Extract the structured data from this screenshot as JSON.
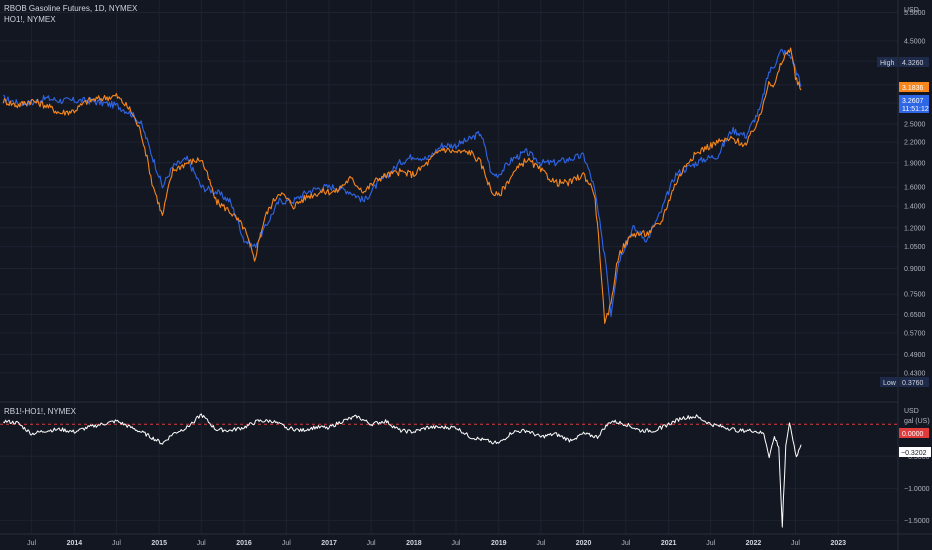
{
  "colors": {
    "background": "#131722",
    "grid": "#1e2230",
    "rb_series": "#f7861c",
    "ho_series": "#2f66e6",
    "spread_series": "#ffffff",
    "zero_line": "#e03a3a",
    "axis_text": "#b2b5be",
    "high_low_badge": "#1e2a4a"
  },
  "main_legend": {
    "title": "RBOB Gasoline Futures, 1D, NYMEX",
    "second": "HO1!, NYMEX"
  },
  "price_axis": {
    "currency": "USD",
    "high_label": "High",
    "high_value": "4.3260",
    "low_label": "Low",
    "low_value": "0.3760",
    "rb_last_value": "3.1836",
    "ho_last_value": "3.2607",
    "ho_countdown": "11:51:12"
  },
  "spread_legend": {
    "title": "RB1!-HO1!, NYMEX"
  },
  "spread_axis": {
    "currency": "USD",
    "unit": "gal (US)",
    "zero_value": "0.0000",
    "last_value": "−0.3202"
  },
  "chart_data": [
    {
      "type": "line",
      "title": "RBOB Gasoline Futures, 1D, NYMEX",
      "scale": "log",
      "ylim": [
        0.36,
        5.8
      ],
      "y_ticks": [
        "5.5000",
        "4.5000",
        "3.9000",
        "3.3000",
        "2.9000",
        "2.5000",
        "2.2000",
        "1.9000",
        "1.6000",
        "1.4000",
        "1.2000",
        "1.0500",
        "0.9000",
        "0.7500",
        "0.6500",
        "0.5700",
        "0.4900",
        "0.4300"
      ],
      "x_ticks": [
        "Jul",
        "2014",
        "Jul",
        "2015",
        "Jul",
        "2016",
        "Jul",
        "2017",
        "Jul",
        "2018",
        "Jul",
        "2019",
        "Jul",
        "2020",
        "Jul",
        "2021",
        "Jul",
        "2022",
        "Jul",
        "2023"
      ],
      "xlim": [
        "2013-02-15",
        "2023-09-15"
      ],
      "series": [
        {
          "name": "RB1!",
          "x": [
            "2013-03-01",
            "2013-05-01",
            "2013-07-01",
            "2013-09-01",
            "2013-11-01",
            "2014-01-01",
            "2014-03-01",
            "2014-05-01",
            "2014-07-01",
            "2014-09-01",
            "2014-10-15",
            "2014-12-01",
            "2015-01-15",
            "2015-03-01",
            "2015-05-01",
            "2015-07-01",
            "2015-09-01",
            "2015-11-01",
            "2016-01-01",
            "2016-02-15",
            "2016-04-01",
            "2016-06-01",
            "2016-08-01",
            "2016-10-01",
            "2016-12-01",
            "2017-02-01",
            "2017-04-01",
            "2017-06-01",
            "2017-08-01",
            "2017-09-15",
            "2017-11-01",
            "2018-01-01",
            "2018-03-01",
            "2018-05-01",
            "2018-07-01",
            "2018-09-01",
            "2018-10-15",
            "2018-12-01",
            "2019-01-01",
            "2019-03-01",
            "2019-05-01",
            "2019-07-01",
            "2019-09-01",
            "2019-11-01",
            "2020-01-01",
            "2020-02-15",
            "2020-03-20",
            "2020-04-01",
            "2020-04-28",
            "2020-06-01",
            "2020-08-01",
            "2020-10-01",
            "2020-12-01",
            "2021-02-01",
            "2021-04-01",
            "2021-06-01",
            "2021-08-01",
            "2021-10-01",
            "2021-12-01",
            "2022-02-01",
            "2022-03-08",
            "2022-04-01",
            "2022-05-01",
            "2022-06-10",
            "2022-07-01",
            "2022-07-25"
          ],
          "values": [
            2.95,
            2.85,
            2.95,
            2.85,
            2.7,
            2.75,
            2.95,
            3.0,
            3.05,
            2.75,
            2.35,
            1.65,
            1.3,
            1.8,
            1.9,
            1.95,
            1.45,
            1.35,
            1.2,
            0.95,
            1.3,
            1.55,
            1.4,
            1.5,
            1.55,
            1.55,
            1.7,
            1.55,
            1.7,
            1.75,
            1.78,
            1.75,
            1.9,
            2.1,
            2.05,
            2.05,
            1.9,
            1.55,
            1.5,
            1.75,
            1.95,
            1.8,
            1.65,
            1.65,
            1.75,
            1.55,
            0.8,
            0.6,
            0.7,
            1.0,
            1.15,
            1.15,
            1.25,
            1.65,
            1.95,
            2.1,
            2.2,
            2.25,
            2.15,
            2.65,
            3.4,
            3.25,
            3.85,
            4.3,
            3.45,
            3.18
          ]
        },
        {
          "name": "HO1!",
          "x": [
            "2013-03-01",
            "2013-05-01",
            "2013-07-01",
            "2013-09-01",
            "2013-11-01",
            "2014-01-01",
            "2014-03-01",
            "2014-05-01",
            "2014-07-01",
            "2014-09-01",
            "2014-10-15",
            "2014-12-01",
            "2015-01-15",
            "2015-03-01",
            "2015-05-01",
            "2015-07-01",
            "2015-09-01",
            "2015-11-01",
            "2016-01-01",
            "2016-02-15",
            "2016-04-01",
            "2016-06-01",
            "2016-08-01",
            "2016-10-01",
            "2016-12-01",
            "2017-02-01",
            "2017-04-01",
            "2017-06-01",
            "2017-08-01",
            "2017-09-15",
            "2017-11-01",
            "2018-01-01",
            "2018-03-01",
            "2018-05-01",
            "2018-07-01",
            "2018-09-01",
            "2018-10-15",
            "2018-12-01",
            "2019-01-01",
            "2019-03-01",
            "2019-05-01",
            "2019-07-01",
            "2019-09-01",
            "2019-11-01",
            "2020-01-01",
            "2020-02-15",
            "2020-03-20",
            "2020-04-01",
            "2020-04-28",
            "2020-06-01",
            "2020-08-01",
            "2020-10-01",
            "2020-12-01",
            "2021-02-01",
            "2021-04-01",
            "2021-06-01",
            "2021-08-01",
            "2021-10-01",
            "2021-12-01",
            "2022-02-01",
            "2022-03-08",
            "2022-04-01",
            "2022-05-01",
            "2022-06-10",
            "2022-07-01",
            "2022-07-25"
          ],
          "values": [
            3.0,
            2.9,
            2.9,
            3.0,
            2.95,
            2.95,
            2.95,
            2.9,
            2.85,
            2.7,
            2.5,
            2.0,
            1.6,
            1.85,
            1.95,
            1.6,
            1.55,
            1.45,
            1.1,
            1.05,
            1.2,
            1.45,
            1.45,
            1.55,
            1.6,
            1.6,
            1.55,
            1.45,
            1.65,
            1.75,
            1.9,
            2.0,
            1.95,
            2.15,
            2.15,
            2.25,
            2.35,
            1.75,
            1.75,
            1.95,
            2.05,
            1.9,
            1.9,
            1.95,
            2.0,
            1.6,
            1.1,
            1.0,
            0.65,
            0.95,
            1.2,
            1.1,
            1.35,
            1.75,
            1.85,
            1.95,
            2.0,
            2.4,
            2.3,
            2.8,
            3.6,
            3.8,
            4.2,
            4.05,
            3.7,
            3.26
          ]
        }
      ]
    },
    {
      "type": "line",
      "title": "RB1!-HO1!, NYMEX",
      "ylim": [
        -1.65,
        0.3
      ],
      "y_ticks": [
        "−0.5000",
        "−1.0000",
        "−1.5000"
      ],
      "series": [
        {
          "name": "RB1!-HO1!",
          "x": [
            "2013-03-01",
            "2013-05-01",
            "2013-07-01",
            "2013-09-01",
            "2013-11-01",
            "2014-01-01",
            "2014-03-01",
            "2014-05-01",
            "2014-07-01",
            "2014-09-01",
            "2014-11-01",
            "2015-01-15",
            "2015-03-01",
            "2015-05-01",
            "2015-07-01",
            "2015-09-01",
            "2015-11-01",
            "2016-01-01",
            "2016-03-01",
            "2016-05-01",
            "2016-07-01",
            "2016-09-01",
            "2016-11-01",
            "2017-01-01",
            "2017-03-01",
            "2017-05-01",
            "2017-07-01",
            "2017-09-01",
            "2017-11-01",
            "2018-01-01",
            "2018-03-01",
            "2018-05-01",
            "2018-07-01",
            "2018-09-01",
            "2018-11-01",
            "2019-01-01",
            "2019-03-01",
            "2019-05-01",
            "2019-07-01",
            "2019-09-01",
            "2019-11-01",
            "2020-01-01",
            "2020-03-01",
            "2020-04-01",
            "2020-05-01",
            "2020-07-01",
            "2020-09-01",
            "2020-11-01",
            "2021-01-01",
            "2021-03-01",
            "2021-05-01",
            "2021-07-01",
            "2021-09-01",
            "2021-11-01",
            "2022-01-01",
            "2022-02-15",
            "2022-03-10",
            "2022-04-01",
            "2022-04-20",
            "2022-05-05",
            "2022-05-20",
            "2022-06-05",
            "2022-06-20",
            "2022-07-05",
            "2022-07-25"
          ],
          "values": [
            0.05,
            0.02,
            -0.15,
            -0.1,
            -0.08,
            -0.12,
            -0.05,
            0.0,
            0.05,
            -0.05,
            -0.15,
            -0.3,
            -0.15,
            -0.05,
            0.15,
            -0.08,
            -0.1,
            -0.05,
            0.05,
            0.05,
            -0.05,
            -0.1,
            -0.05,
            -0.05,
            0.05,
            0.12,
            0.0,
            0.05,
            -0.1,
            -0.12,
            -0.05,
            -0.05,
            -0.05,
            -0.2,
            -0.25,
            -0.3,
            -0.12,
            -0.1,
            -0.2,
            -0.15,
            -0.25,
            -0.15,
            -0.2,
            -0.05,
            0.05,
            0.0,
            -0.1,
            -0.1,
            0.0,
            0.1,
            0.12,
            0.0,
            -0.05,
            -0.1,
            -0.1,
            -0.15,
            -0.5,
            -0.2,
            -0.35,
            -1.6,
            -0.35,
            0.05,
            -0.25,
            -0.5,
            -0.32
          ]
        }
      ]
    }
  ]
}
